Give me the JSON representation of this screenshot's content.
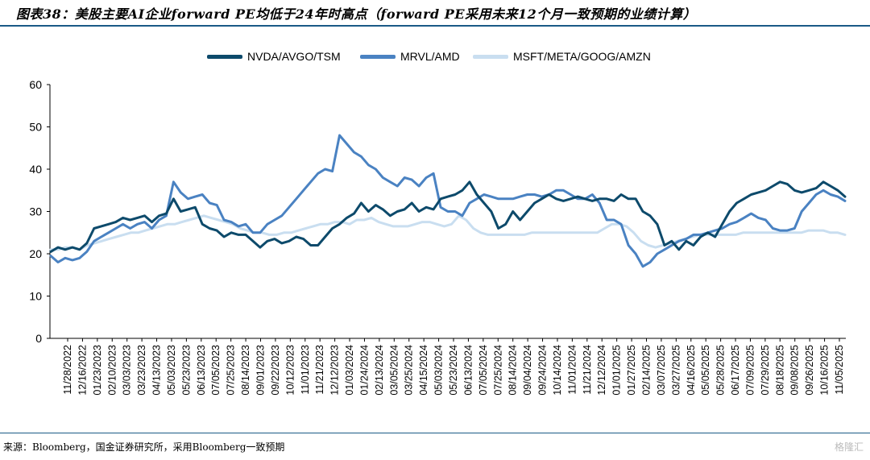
{
  "title": "图表38：美股主要AI企业forward PE均低于24年时高点（forward PE采用未来12个月一致预期的业绩计算）",
  "source": "来源：Bloomberg，国金证券研究所，采用Bloomberg一致预期",
  "logo_text": "格隆汇",
  "colors": {
    "nvda": "#0d4a6b",
    "mrvl": "#4a82c2",
    "msft": "#c9def0",
    "rule": "#1a5a86"
  },
  "chart_data": {
    "type": "line",
    "title": "美股主要AI企业forward PE均低于24年时高点（forward PE采用未来12个月一致预期的业绩计算）",
    "xlabel": "",
    "ylabel": "",
    "ylim": [
      0,
      60
    ],
    "yticks": [
      0,
      10,
      20,
      30,
      40,
      50,
      60
    ],
    "grid": false,
    "legend_position": "top",
    "x_tick_labels": [
      "11/28/2022",
      "12/16/2022",
      "01/23/2023",
      "02/10/2023",
      "03/03/2023",
      "03/23/2023",
      "04/13/2023",
      "05/03/2023",
      "05/23/2023",
      "06/13/2023",
      "07/05/2023",
      "07/25/2023",
      "08/14/2023",
      "09/01/2023",
      "09/22/2023",
      "10/12/2023",
      "11/01/2023",
      "11/21/2023",
      "12/12/2023",
      "01/03/2024",
      "01/24/2024",
      "02/13/2024",
      "03/05/2024",
      "03/25/2024",
      "04/15/2024",
      "05/03/2024",
      "05/23/2024",
      "06/13/2024",
      "07/05/2024",
      "07/25/2024",
      "08/14/2024",
      "09/04/2024",
      "09/24/2024",
      "10/14/2024",
      "11/01/2024",
      "11/21/2024",
      "12/12/2024",
      "01/01/2025",
      "01/27/2025",
      "02/14/2025",
      "03/07/2025",
      "03/27/2025",
      "04/16/2025",
      "05/05/2025",
      "05/28/2025",
      "06/17/2025",
      "07/09/2025",
      "07/29/2025",
      "08/18/2025",
      "09/08/2025",
      "09/26/2025",
      "10/16/2025",
      "11/05/2025"
    ],
    "series": [
      {
        "name": "NVDA/AVGO/TSM",
        "values": [
          20.5,
          21.5,
          21,
          21.5,
          21,
          22.5,
          26,
          26.5,
          27,
          27.5,
          28.5,
          28,
          28.5,
          29,
          27.5,
          29,
          29.5,
          33,
          30,
          30.5,
          31,
          27,
          26,
          25.5,
          24,
          25,
          24.5,
          24.5,
          23,
          21.5,
          23,
          23.5,
          22.5,
          23,
          24,
          23.5,
          22,
          22,
          24,
          26,
          27,
          28.5,
          29.5,
          32,
          30,
          31.5,
          30.5,
          29,
          30,
          30.5,
          32,
          30,
          31,
          30.5,
          33,
          33.5,
          34,
          35,
          37,
          34,
          32,
          30,
          26,
          27,
          30,
          28,
          30,
          32,
          33,
          34,
          33,
          32.5,
          33,
          33.5,
          33,
          32.5,
          33,
          33,
          32.5,
          34,
          33,
          33,
          30,
          29,
          27,
          22,
          23,
          21,
          23,
          22,
          24,
          25,
          24,
          27,
          30,
          32,
          33,
          34,
          34.5,
          35,
          36,
          37,
          36.5,
          35,
          34.5,
          35,
          35.5,
          37,
          36,
          35,
          33.5
        ]
      },
      {
        "name": "MRVL/AMD",
        "values": [
          19.5,
          18,
          19,
          18.5,
          19,
          20.5,
          23,
          24,
          25,
          26,
          27,
          26,
          27,
          27.5,
          26,
          28,
          29,
          37,
          34.5,
          33,
          33.5,
          34,
          32,
          31.5,
          28,
          27.5,
          26.5,
          27,
          25,
          25,
          27,
          28,
          29,
          31,
          33,
          35,
          37,
          39,
          40,
          39.5,
          48,
          46,
          44,
          43,
          41,
          40,
          38,
          37,
          36,
          38,
          37.5,
          36,
          38,
          39,
          31,
          30,
          30,
          29,
          32,
          33,
          34,
          33.5,
          33,
          33,
          33,
          33.5,
          34,
          34,
          33.5,
          34,
          35,
          35,
          34,
          33,
          33,
          34,
          32,
          28,
          28,
          27,
          22,
          20,
          17,
          18,
          20,
          21,
          22,
          23,
          23.5,
          24.5,
          24.5,
          25,
          25.5,
          26,
          27,
          27.5,
          28.5,
          29.5,
          28.5,
          28,
          26,
          25.5,
          25.5,
          26,
          30,
          32,
          34,
          35,
          34,
          33.5,
          32.5
        ]
      },
      {
        "name": "MSFT/META/GOOG/AMZN",
        "values": [
          21,
          21,
          21.5,
          21.5,
          21,
          22,
          22.5,
          23,
          23.5,
          24,
          24.5,
          25,
          25,
          25.5,
          26,
          26.5,
          27,
          27,
          27.5,
          28,
          28.5,
          29,
          28.5,
          28,
          27.5,
          27,
          26,
          25.5,
          25,
          25,
          24.5,
          24.5,
          25,
          25,
          25.5,
          26,
          26.5,
          27,
          27,
          27.5,
          27.5,
          27,
          28,
          28,
          28.5,
          27.5,
          27,
          26.5,
          26.5,
          26.5,
          27,
          27.5,
          27.5,
          27,
          26.5,
          27,
          29,
          28,
          26,
          25,
          24.5,
          24.5,
          24.5,
          24.5,
          24.5,
          24.5,
          25,
          25,
          25,
          25,
          25,
          25,
          25,
          25,
          25,
          25,
          26,
          27,
          27,
          26.5,
          25,
          23,
          22,
          21.5,
          22,
          22.5,
          23,
          23.5,
          24,
          24.5,
          24.5,
          24.5,
          24.5,
          24.5,
          24.5,
          25,
          25,
          25,
          25,
          25,
          25,
          25,
          25,
          25,
          25.5,
          25.5,
          25.5,
          25,
          25,
          24.5
        ]
      }
    ]
  }
}
